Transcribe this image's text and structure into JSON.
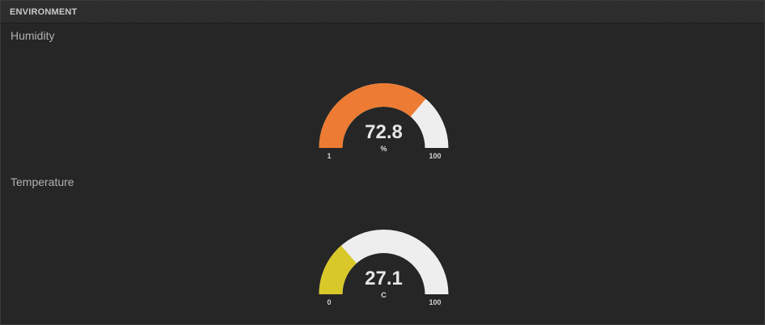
{
  "panel": {
    "title": "ENVIRONMENT"
  },
  "widgets": [
    {
      "label": "Humidity",
      "value": "72.8",
      "numeric_value": 72.8,
      "unit": "%",
      "min": "1",
      "max": "100",
      "min_value": 1,
      "max_value": 100,
      "fill_color": "#ed7b33",
      "track_color": "#eeeeee"
    },
    {
      "label": "Temperature",
      "value": "27.1",
      "numeric_value": 27.1,
      "unit": "C",
      "min": "0",
      "max": "100",
      "min_value": 0,
      "max_value": 100,
      "fill_color": "#d8c82a",
      "track_color": "#eeeeee"
    }
  ]
}
